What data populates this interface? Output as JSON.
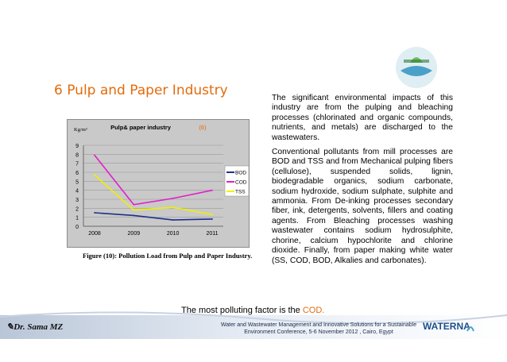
{
  "title": "6 Pulp and Paper Industry",
  "chart_data": {
    "type": "line",
    "title": "Pulp& paper industry",
    "title_suffix": "(6)",
    "ylabel": "Kg/m³",
    "categories": [
      "2008",
      "2009",
      "2010",
      "2011"
    ],
    "ylim": [
      0,
      9
    ],
    "yticks": [
      "0",
      "1",
      "2",
      "3",
      "4",
      "5",
      "6",
      "7",
      "8",
      "9"
    ],
    "grid": true,
    "legend_position": "right",
    "series": [
      {
        "name": "BOD",
        "values": [
          1.5,
          1.2,
          0.7,
          0.8
        ],
        "color": "#1f2f8a"
      },
      {
        "name": "COD",
        "values": [
          7.9,
          2.4,
          3.1,
          4.0
        ],
        "color": "#e020c8"
      },
      {
        "name": "TSS",
        "values": [
          5.7,
          1.8,
          2.1,
          1.3
        ],
        "color": "#f0f000"
      }
    ]
  },
  "caption": "Figure (10): Pollution Load from Pulp and Paper Industry.",
  "paragraphs": [
    "The significant environmental impacts of this industry are from the pulping and bleaching processes (chlorinated and organic compounds, nutrients, and metals) are discharged to the wastewaters.",
    "Conventional pollutants from mill processes are BOD and TSS and from Mechanical pulping fibers (cellulose), suspended solids, lignin, biodegradable organics, sodium carbonate, sodium hydroxide, sodium sulphate, sulphite and ammonia. From De-inking processes secondary fiber, ink, detergents, solvents, fillers and coating agents. From Bleaching processes washing wastewater contains sodium hydrosulphite, chorine, calcium hypochlorite and chlorine dioxide. Finally, from paper making white water (SS, COD, BOD, Alkalies and carbonates)."
  ],
  "footnote": {
    "prefix": "The most polluting factor is the ",
    "highlight": "COD."
  },
  "author": "Dr. Sama MZ",
  "conference": "Water and Wastewater Management and Innovative Solutions for a Sustainable Environment Conference, 5-6 November 2012 , Cairo, Egypt",
  "logo_text": "WATERNA",
  "colors": {
    "accent": "#e36c0a",
    "brand": "#1c4f8c"
  }
}
